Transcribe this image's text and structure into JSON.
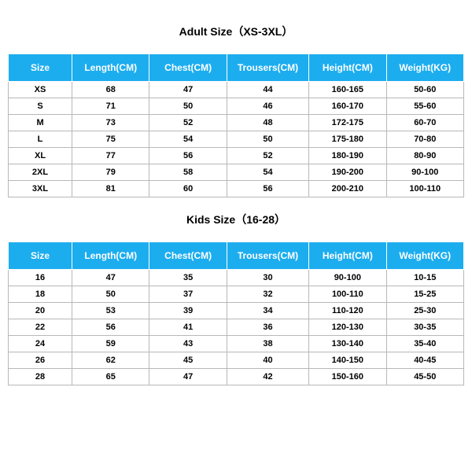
{
  "colors": {
    "header_bg": "#1cadef",
    "header_text": "#ffffff",
    "header_border": "#ffffff",
    "cell_border": "#b8b8b8",
    "text": "#000000",
    "background": "#ffffff"
  },
  "typography": {
    "title_fontsize": 14,
    "header_fontsize": 12,
    "cell_fontsize": 11
  },
  "layout": {
    "col_widths_pct": [
      14,
      17,
      17,
      18,
      17,
      17
    ]
  },
  "adult": {
    "title": "Adult Size（XS-3XL）",
    "columns": [
      "Size",
      "Length(CM)",
      "Chest(CM)",
      "Trousers(CM)",
      "Height(CM)",
      "Weight(KG)"
    ],
    "rows": [
      [
        "XS",
        "68",
        "47",
        "44",
        "160-165",
        "50-60"
      ],
      [
        "S",
        "71",
        "50",
        "46",
        "160-170",
        "55-60"
      ],
      [
        "M",
        "73",
        "52",
        "48",
        "172-175",
        "60-70"
      ],
      [
        "L",
        "75",
        "54",
        "50",
        "175-180",
        "70-80"
      ],
      [
        "XL",
        "77",
        "56",
        "52",
        "180-190",
        "80-90"
      ],
      [
        "2XL",
        "79",
        "58",
        "54",
        "190-200",
        "90-100"
      ],
      [
        "3XL",
        "81",
        "60",
        "56",
        "200-210",
        "100-110"
      ]
    ]
  },
  "kids": {
    "title": "Kids Size（16-28）",
    "columns": [
      "Size",
      "Length(CM)",
      "Chest(CM)",
      "Trousers(CM)",
      "Height(CM)",
      "Weight(KG)"
    ],
    "rows": [
      [
        "16",
        "47",
        "35",
        "30",
        "90-100",
        "10-15"
      ],
      [
        "18",
        "50",
        "37",
        "32",
        "100-110",
        "15-25"
      ],
      [
        "20",
        "53",
        "39",
        "34",
        "110-120",
        "25-30"
      ],
      [
        "22",
        "56",
        "41",
        "36",
        "120-130",
        "30-35"
      ],
      [
        "24",
        "59",
        "43",
        "38",
        "130-140",
        "35-40"
      ],
      [
        "26",
        "62",
        "45",
        "40",
        "140-150",
        "40-45"
      ],
      [
        "28",
        "65",
        "47",
        "42",
        "150-160",
        "45-50"
      ]
    ]
  }
}
